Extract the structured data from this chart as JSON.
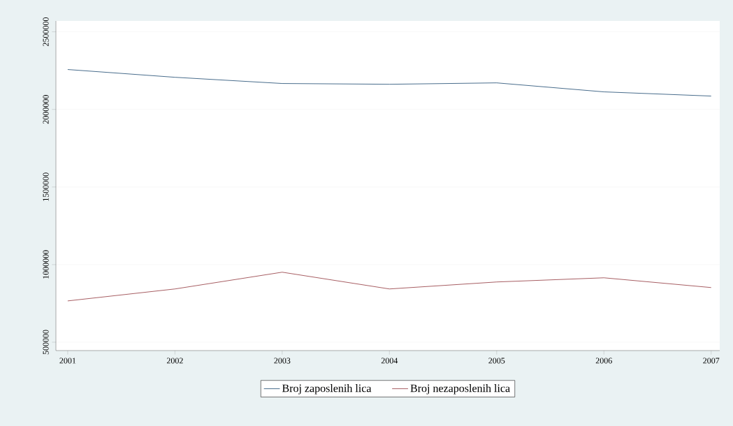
{
  "chart_data": {
    "type": "line",
    "x": [
      2001,
      2002,
      2003,
      2004,
      2005,
      2006,
      2007
    ],
    "series": [
      {
        "name": "Broj zaposlenih lica",
        "color": "#1a476f",
        "values": [
          2257000,
          2207000,
          2167000,
          2162000,
          2171000,
          2113000,
          2086000
        ]
      },
      {
        "name": "Broj nezaposlenih lica",
        "color": "#90353b",
        "values": [
          766000,
          843000,
          951000,
          843000,
          888000,
          915000,
          852000
        ]
      }
    ],
    "xlim": [
      2000.89,
      2007.08
    ],
    "ylim": [
      446000,
      2570000
    ],
    "xticks": [
      2001,
      2002,
      2003,
      2004,
      2005,
      2006,
      2007
    ],
    "yticks": [
      500000,
      1000000,
      1500000,
      2000000,
      2500000
    ],
    "grid": "y",
    "legend": "bottom",
    "marker": "none",
    "line_style": "solid"
  }
}
